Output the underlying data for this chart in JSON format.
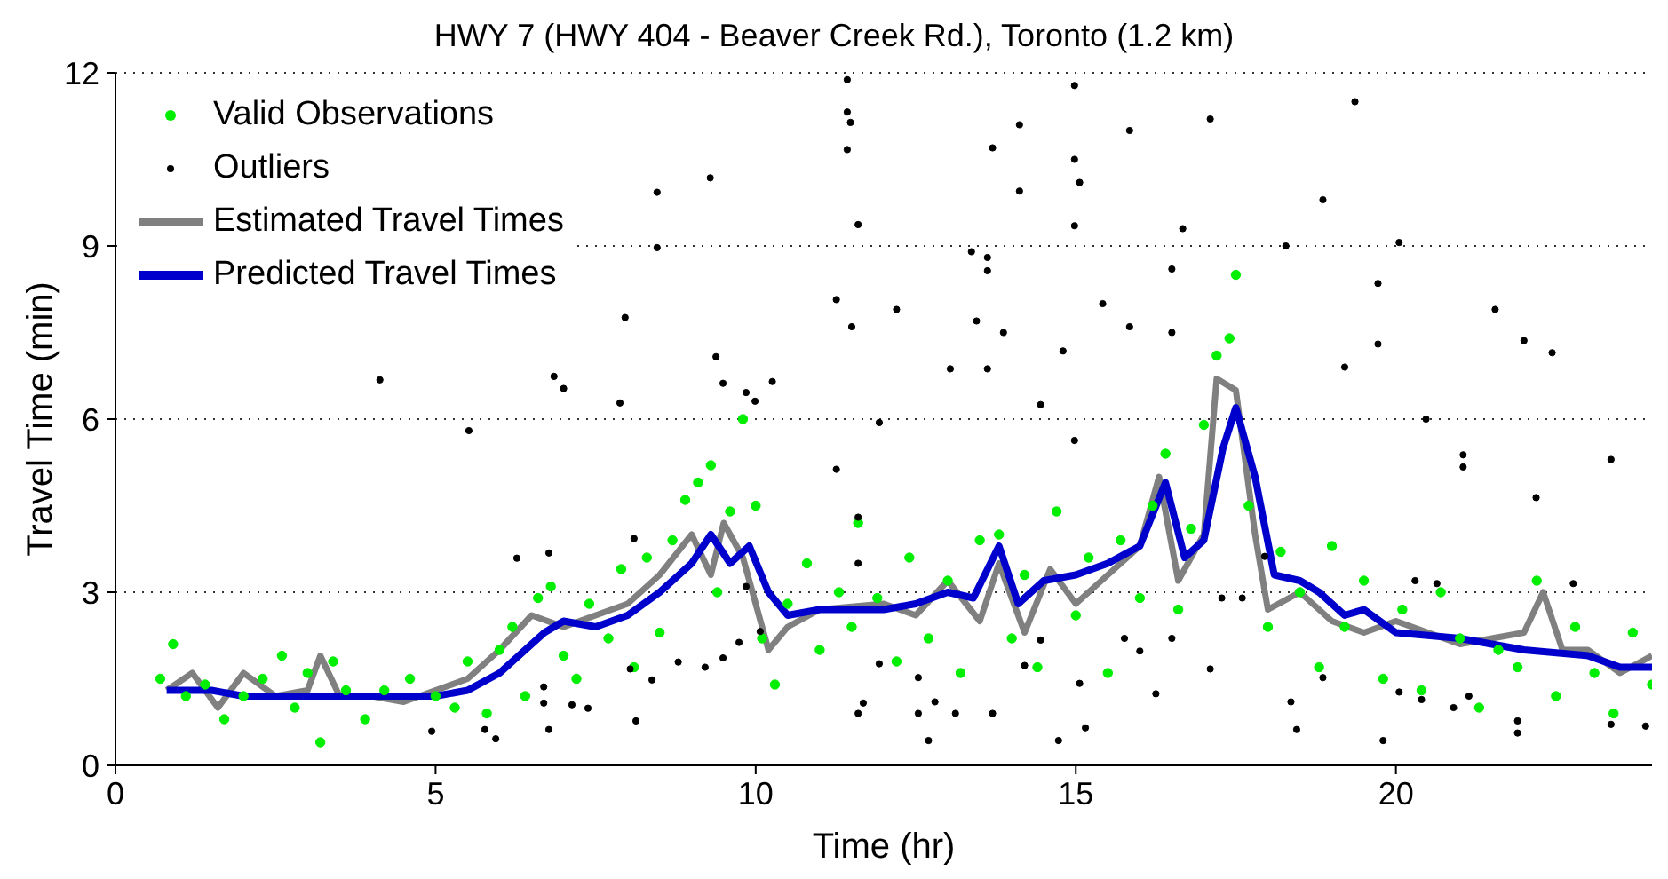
{
  "chart_data": {
    "type": "scatter",
    "title": "HWY 7 (HWY 404 - Beaver Creek Rd.), Toronto (1.2 km)",
    "xlabel": "Time (hr)",
    "ylabel": "Travel Time (min)",
    "xlim": [
      0,
      24
    ],
    "xticks": [
      0,
      5,
      10,
      15,
      20
    ],
    "ylim": [
      0,
      12
    ],
    "yticks": [
      0,
      3,
      6,
      9,
      12
    ],
    "grid": "y",
    "legend": "top left",
    "marker": "circle",
    "series": [
      {
        "name": "Valid Observations",
        "type": "scatter",
        "color": "#00ee00",
        "x": [
          0.7,
          0.9,
          1.1,
          1.4,
          1.7,
          2.0,
          2.3,
          2.6,
          2.8,
          3.0,
          3.2,
          3.4,
          3.6,
          3.9,
          4.2,
          4.6,
          5.0,
          5.3,
          5.5,
          5.8,
          6.0,
          6.2,
          6.4,
          6.6,
          6.8,
          7.0,
          7.2,
          7.4,
          7.7,
          7.9,
          8.1,
          8.3,
          8.5,
          8.7,
          8.9,
          9.1,
          9.3,
          9.4,
          9.6,
          9.8,
          10.0,
          10.1,
          10.3,
          10.5,
          10.8,
          11.0,
          11.3,
          11.5,
          11.6,
          11.9,
          12.2,
          12.4,
          12.7,
          13.0,
          13.2,
          13.5,
          13.8,
          14.0,
          14.2,
          14.4,
          14.7,
          15.0,
          15.2,
          15.5,
          15.7,
          16.0,
          16.2,
          16.4,
          16.6,
          16.8,
          17.0,
          17.2,
          17.4,
          17.5,
          17.7,
          18.0,
          18.2,
          18.5,
          18.8,
          19.0,
          19.2,
          19.5,
          19.8,
          20.1,
          20.4,
          20.7,
          21.0,
          21.3,
          21.6,
          21.9,
          22.2,
          22.5,
          22.8,
          23.1,
          23.4,
          23.7,
          24.0
        ],
        "values": [
          1.5,
          2.1,
          1.2,
          1.4,
          0.8,
          1.2,
          1.5,
          1.9,
          1.0,
          1.6,
          0.4,
          1.8,
          1.3,
          0.8,
          1.3,
          1.5,
          1.2,
          1.0,
          1.8,
          0.9,
          2.0,
          2.4,
          1.2,
          2.9,
          3.1,
          1.9,
          1.5,
          2.8,
          2.2,
          3.4,
          1.7,
          3.6,
          2.3,
          3.9,
          4.6,
          4.9,
          5.2,
          3.0,
          4.4,
          6.0,
          4.5,
          2.2,
          1.4,
          2.8,
          3.5,
          2.0,
          3.0,
          2.4,
          4.2,
          2.9,
          1.8,
          3.6,
          2.2,
          3.2,
          1.6,
          3.9,
          4.0,
          2.2,
          3.3,
          1.7,
          4.4,
          2.6,
          3.6,
          1.6,
          3.9,
          2.9,
          4.5,
          5.4,
          2.7,
          4.1,
          5.9,
          7.1,
          7.4,
          8.5,
          4.5,
          2.4,
          3.7,
          3.0,
          1.7,
          3.8,
          2.4,
          3.2,
          1.5,
          2.7,
          1.3,
          3.0,
          2.2,
          1.0,
          2.0,
          1.7,
          3.2,
          1.2,
          2.4,
          1.6,
          0.9,
          2.3,
          1.4
        ]
      },
      {
        "name": "Outliers",
        "type": "scatter",
        "color": "#000000",
        "x": [
          4.13,
          5.52,
          6.85,
          7.0,
          7.88,
          7.96,
          8.46,
          8.46,
          9.29,
          9.38,
          9.49,
          9.85,
          9.99,
          10.26,
          11.43,
          11.43,
          11.48,
          11.43,
          11.93,
          11.6,
          11.5,
          11.26,
          11.26,
          12.2,
          13.04,
          13.37,
          13.45,
          13.62,
          13.62,
          13.62,
          13.7,
          13.87,
          14.12,
          14.12,
          14.45,
          14.8,
          14.98,
          14.98,
          14.98,
          14.98,
          15.06,
          15.42,
          15.84,
          15.84,
          16.5,
          16.5,
          16.67,
          17.1,
          18.28,
          18.86,
          19.2,
          19.36,
          19.72,
          19.72,
          20.05,
          20.47,
          21.05,
          21.05,
          21.55,
          22.0,
          22.19,
          22.44,
          23.36,
          4.94,
          5.77,
          5.94,
          6.69,
          6.69,
          6.77,
          7.13,
          7.38,
          8.13,
          8.04,
          8.38,
          8.79,
          9.21,
          9.49,
          9.74,
          10.07,
          11.6,
          11.68,
          11.6,
          11.6,
          9.85,
          8.1,
          6.77,
          6.27,
          11.93,
          12.54,
          12.8,
          12.54,
          12.7,
          13.12,
          13.7,
          14.2,
          14.45,
          15.06,
          15.15,
          14.73,
          16.25,
          17.1,
          18.36,
          18.45,
          18.86,
          19.8,
          20.05,
          20.4,
          20.9,
          21.14,
          21.9,
          21.9,
          23.36,
          23.9,
          17.95,
          17.28,
          17.6,
          20.3,
          20.64,
          22.77,
          16.5,
          15.76,
          16.0
        ],
        "values": [
          6.68,
          5.8,
          6.74,
          6.53,
          6.28,
          7.76,
          9.93,
          8.97,
          10.18,
          7.08,
          6.62,
          6.46,
          6.31,
          6.65,
          11.88,
          11.32,
          11.14,
          10.67,
          5.94,
          9.37,
          7.6,
          8.07,
          5.13,
          7.9,
          6.87,
          8.9,
          7.7,
          8.8,
          8.57,
          6.87,
          10.7,
          7.5,
          11.1,
          9.95,
          6.25,
          7.18,
          11.78,
          10.5,
          9.35,
          5.63,
          10.1,
          8.0,
          11.0,
          7.6,
          8.6,
          7.5,
          9.3,
          11.2,
          9.0,
          9.8,
          6.9,
          11.5,
          8.35,
          7.3,
          9.06,
          6.0,
          5.38,
          5.17,
          7.9,
          7.36,
          4.64,
          7.15,
          5.3,
          0.59,
          0.62,
          0.46,
          1.36,
          1.08,
          0.62,
          1.05,
          0.99,
          0.77,
          1.67,
          1.48,
          1.79,
          1.7,
          1.86,
          2.13,
          2.32,
          0.9,
          1.08,
          3.5,
          4.3,
          3.1,
          3.93,
          3.68,
          3.59,
          1.76,
          1.52,
          1.1,
          0.9,
          0.43,
          0.9,
          0.9,
          1.73,
          2.17,
          1.42,
          0.65,
          0.43,
          1.24,
          1.67,
          1.1,
          0.62,
          1.52,
          0.43,
          1.27,
          1.14,
          1.0,
          1.2,
          0.56,
          0.77,
          0.71,
          0.68,
          3.62,
          2.9,
          2.9,
          3.2,
          3.15,
          3.15,
          2.2,
          2.2,
          1.98
        ]
      },
      {
        "name": "Estimated Travel Times",
        "type": "line",
        "marker": "none",
        "color": "#808080",
        "x": [
          0.8,
          1.2,
          1.6,
          2.0,
          2.5,
          3.0,
          3.2,
          3.5,
          4.0,
          4.5,
          5.0,
          5.5,
          6.0,
          6.5,
          7.0,
          7.5,
          8.0,
          8.5,
          9.0,
          9.3,
          9.5,
          9.8,
          10.2,
          10.5,
          11.0,
          12.0,
          12.5,
          13.0,
          13.5,
          13.8,
          14.2,
          14.6,
          15.0,
          15.5,
          16.0,
          16.3,
          16.6,
          17.0,
          17.2,
          17.5,
          17.8,
          18.0,
          18.5,
          19.0,
          19.5,
          20.0,
          21.0,
          22.0,
          22.3,
          22.6,
          23.0,
          23.5,
          24.0
        ],
        "values": [
          1.3,
          1.6,
          1.0,
          1.6,
          1.2,
          1.3,
          1.9,
          1.2,
          1.2,
          1.1,
          1.3,
          1.5,
          2.0,
          2.6,
          2.4,
          2.6,
          2.8,
          3.3,
          4.0,
          3.3,
          4.2,
          3.6,
          2.0,
          2.4,
          2.7,
          2.8,
          2.6,
          3.2,
          2.5,
          3.5,
          2.3,
          3.4,
          2.8,
          3.3,
          3.8,
          5.0,
          3.2,
          4.0,
          6.7,
          6.5,
          4.0,
          2.7,
          3.0,
          2.5,
          2.3,
          2.5,
          2.1,
          2.3,
          3.0,
          2.0,
          2.0,
          1.6,
          1.9
        ]
      },
      {
        "name": "Predicted Travel Times",
        "type": "line",
        "marker": "none",
        "color": "#0000cc",
        "x": [
          0.8,
          1.5,
          2.0,
          3.0,
          4.0,
          5.0,
          5.5,
          6.0,
          6.7,
          7.0,
          7.5,
          8.0,
          8.5,
          9.0,
          9.3,
          9.6,
          9.9,
          10.2,
          10.5,
          11.0,
          12.0,
          12.5,
          13.0,
          13.4,
          13.8,
          14.1,
          14.5,
          15.0,
          15.5,
          16.0,
          16.4,
          16.7,
          17.0,
          17.3,
          17.5,
          17.8,
          18.1,
          18.5,
          18.8,
          19.2,
          19.5,
          20.0,
          21.0,
          22.0,
          23.0,
          23.5,
          24.0
        ],
        "values": [
          1.3,
          1.3,
          1.2,
          1.2,
          1.2,
          1.2,
          1.3,
          1.6,
          2.3,
          2.5,
          2.4,
          2.6,
          3.0,
          3.5,
          4.0,
          3.5,
          3.8,
          3.0,
          2.6,
          2.7,
          2.7,
          2.8,
          3.0,
          2.9,
          3.8,
          2.8,
          3.2,
          3.3,
          3.5,
          3.8,
          4.9,
          3.6,
          3.9,
          5.5,
          6.2,
          5.0,
          3.3,
          3.2,
          3.0,
          2.6,
          2.7,
          2.3,
          2.2,
          2.0,
          1.9,
          1.7,
          1.7
        ]
      }
    ]
  }
}
